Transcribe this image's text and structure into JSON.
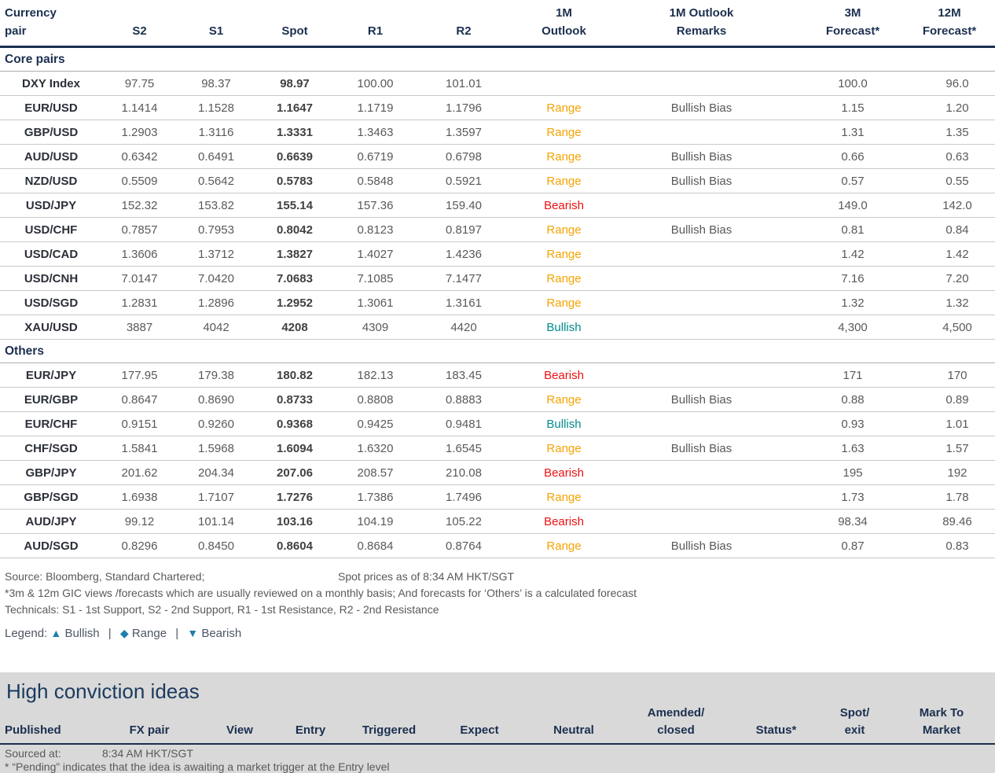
{
  "table": {
    "columns": [
      "Currency\npair",
      "S2",
      "S1",
      "Spot",
      "R1",
      "R2",
      "1M\nOutlook",
      "1M Outlook\nRemarks",
      "3M\nForecast*",
      "12M\nForecast*"
    ],
    "sections": [
      {
        "label": "Core pairs",
        "rows": [
          {
            "pair": "DXY Index",
            "s2": "97.75",
            "s1": "98.37",
            "spot": "98.97",
            "r1": "100.00",
            "r2": "101.01",
            "outlook_1m": "",
            "remarks_1m": "",
            "forecast_3m": "100.0",
            "forecast_12m": "96.0"
          },
          {
            "pair": "EUR/USD",
            "s2": "1.1414",
            "s1": "1.1528",
            "spot": "1.1647",
            "r1": "1.1719",
            "r2": "1.1796",
            "outlook_1m": "Range",
            "remarks_1m": "Bullish Bias",
            "forecast_3m": "1.15",
            "forecast_12m": "1.20"
          },
          {
            "pair": "GBP/USD",
            "s2": "1.2903",
            "s1": "1.3116",
            "spot": "1.3331",
            "r1": "1.3463",
            "r2": "1.3597",
            "outlook_1m": "Range",
            "remarks_1m": "",
            "forecast_3m": "1.31",
            "forecast_12m": "1.35"
          },
          {
            "pair": "AUD/USD",
            "s2": "0.6342",
            "s1": "0.6491",
            "spot": "0.6639",
            "r1": "0.6719",
            "r2": "0.6798",
            "outlook_1m": "Range",
            "remarks_1m": "Bullish Bias",
            "forecast_3m": "0.66",
            "forecast_12m": "0.63"
          },
          {
            "pair": "NZD/USD",
            "s2": "0.5509",
            "s1": "0.5642",
            "spot": "0.5783",
            "r1": "0.5848",
            "r2": "0.5921",
            "outlook_1m": "Range",
            "remarks_1m": "Bullish Bias",
            "forecast_3m": "0.57",
            "forecast_12m": "0.55"
          },
          {
            "pair": "USD/JPY",
            "s2": "152.32",
            "s1": "153.82",
            "spot": "155.14",
            "r1": "157.36",
            "r2": "159.40",
            "outlook_1m": "Bearish",
            "remarks_1m": "",
            "forecast_3m": "149.0",
            "forecast_12m": "142.0"
          },
          {
            "pair": "USD/CHF",
            "s2": "0.7857",
            "s1": "0.7953",
            "spot": "0.8042",
            "r1": "0.8123",
            "r2": "0.8197",
            "outlook_1m": "Range",
            "remarks_1m": "Bullish Bias",
            "forecast_3m": "0.81",
            "forecast_12m": "0.84"
          },
          {
            "pair": "USD/CAD",
            "s2": "1.3606",
            "s1": "1.3712",
            "spot": "1.3827",
            "r1": "1.4027",
            "r2": "1.4236",
            "outlook_1m": "Range",
            "remarks_1m": "",
            "forecast_3m": "1.42",
            "forecast_12m": "1.42"
          },
          {
            "pair": "USD/CNH",
            "s2": "7.0147",
            "s1": "7.0420",
            "spot": "7.0683",
            "r1": "7.1085",
            "r2": "7.1477",
            "outlook_1m": "Range",
            "remarks_1m": "",
            "forecast_3m": "7.16",
            "forecast_12m": "7.20"
          },
          {
            "pair": "USD/SGD",
            "s2": "1.2831",
            "s1": "1.2896",
            "spot": "1.2952",
            "r1": "1.3061",
            "r2": "1.3161",
            "outlook_1m": "Range",
            "remarks_1m": "",
            "forecast_3m": "1.32",
            "forecast_12m": "1.32"
          },
          {
            "pair": "XAU/USD",
            "s2": "3887",
            "s1": "4042",
            "spot": "4208",
            "r1": "4309",
            "r2": "4420",
            "outlook_1m": "Bullish",
            "remarks_1m": "",
            "forecast_3m": "4,300",
            "forecast_12m": "4,500"
          }
        ]
      },
      {
        "label": "Others",
        "rows": [
          {
            "pair": "EUR/JPY",
            "s2": "177.95",
            "s1": "179.38",
            "spot": "180.82",
            "r1": "182.13",
            "r2": "183.45",
            "outlook_1m": "Bearish",
            "remarks_1m": "",
            "forecast_3m": "171",
            "forecast_12m": "170"
          },
          {
            "pair": "EUR/GBP",
            "s2": "0.8647",
            "s1": "0.8690",
            "spot": "0.8733",
            "r1": "0.8808",
            "r2": "0.8883",
            "outlook_1m": "Range",
            "remarks_1m": "Bullish Bias",
            "forecast_3m": "0.88",
            "forecast_12m": "0.89"
          },
          {
            "pair": "EUR/CHF",
            "s2": "0.9151",
            "s1": "0.9260",
            "spot": "0.9368",
            "r1": "0.9425",
            "r2": "0.9481",
            "outlook_1m": "Bullish",
            "remarks_1m": "",
            "forecast_3m": "0.93",
            "forecast_12m": "1.01"
          },
          {
            "pair": "CHF/SGD",
            "s2": "1.5841",
            "s1": "1.5968",
            "spot": "1.6094",
            "r1": "1.6320",
            "r2": "1.6545",
            "outlook_1m": "Range",
            "remarks_1m": "Bullish Bias",
            "forecast_3m": "1.63",
            "forecast_12m": "1.57"
          },
          {
            "pair": "GBP/JPY",
            "s2": "201.62",
            "s1": "204.34",
            "spot": "207.06",
            "r1": "208.57",
            "r2": "210.08",
            "outlook_1m": "Bearish",
            "remarks_1m": "",
            "forecast_3m": "195",
            "forecast_12m": "192"
          },
          {
            "pair": "GBP/SGD",
            "s2": "1.6938",
            "s1": "1.7107",
            "spot": "1.7276",
            "r1": "1.7386",
            "r2": "1.7496",
            "outlook_1m": "Range",
            "remarks_1m": "",
            "forecast_3m": "1.73",
            "forecast_12m": "1.78"
          },
          {
            "pair": "AUD/JPY",
            "s2": "99.12",
            "s1": "101.14",
            "spot": "103.16",
            "r1": "104.19",
            "r2": "105.22",
            "outlook_1m": "Bearish",
            "remarks_1m": "",
            "forecast_3m": "98.34",
            "forecast_12m": "89.46"
          },
          {
            "pair": "AUD/SGD",
            "s2": "0.8296",
            "s1": "0.8450",
            "spot": "0.8604",
            "r1": "0.8684",
            "r2": "0.8764",
            "outlook_1m": "Range",
            "remarks_1m": "Bullish Bias",
            "forecast_3m": "0.87",
            "forecast_12m": "0.83"
          }
        ]
      }
    ]
  },
  "footnotes": {
    "source": "Source: Bloomberg, Standard Chartered;",
    "spot_asof": "Spot prices as of  8:34 AM HKT/SGT",
    "forecast_note": "*3m & 12m GIC views /forecasts which are usually reviewed on a monthly basis; And forecasts for ‘Others’ is a calculated forecast",
    "technicals": "Technicals: S1 - 1st Support, S2 - 2nd Support, R1 - 1st Resistance, R2 - 2nd Resistance"
  },
  "legend": {
    "prefix": "Legend:",
    "separator": "|",
    "items": [
      {
        "icon": "▲",
        "label": "Bullish"
      },
      {
        "icon": "◆",
        "label": "Range"
      },
      {
        "icon": "▼",
        "label": "Bearish"
      }
    ]
  },
  "high_conviction": {
    "title": "High conviction ideas",
    "columns": [
      "Published",
      "FX pair",
      "View",
      "Entry",
      "Triggered",
      "Expect",
      "Neutral",
      "Amended/\nclosed",
      "Status*",
      "Spot/\nexit",
      "Mark To\nMarket"
    ],
    "sourced_label": "Sourced at:",
    "sourced_time": "8:34 AM HKT/SGT",
    "pending_note": "* “Pending” indicates that the idea is awaiting a market trigger at the Entry level"
  },
  "colors": {
    "navy": "#1B2F4F",
    "band_gray": "#D9D9D9",
    "legend_icon": "#1D7FAD",
    "outlook": {
      "Range": "#F5A300",
      "Bullish": "#008C8C",
      "Bearish": "#EC1111"
    }
  }
}
